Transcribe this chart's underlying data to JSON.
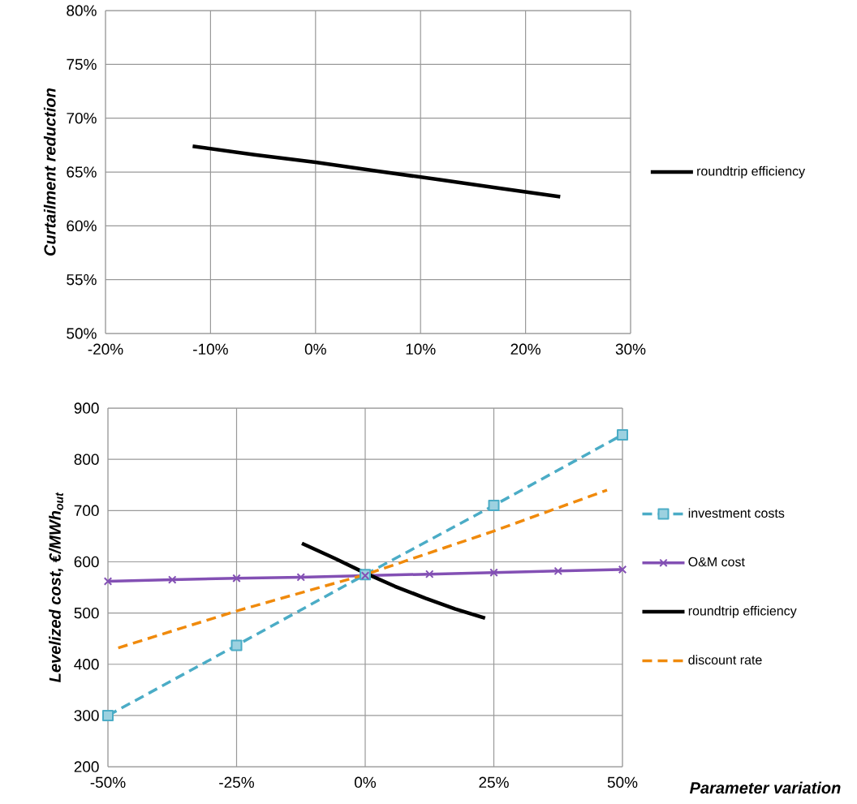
{
  "chart_data": [
    {
      "type": "line",
      "ylabel": "Curtailment reduction",
      "xlim": [
        -20,
        30
      ],
      "xticks": [
        {
          "value": -20,
          "label": "-20%"
        },
        {
          "value": -10,
          "label": "-10%"
        },
        {
          "value": 0,
          "label": "0%"
        },
        {
          "value": 10,
          "label": "10%"
        },
        {
          "value": 20,
          "label": "20%"
        },
        {
          "value": 30,
          "label": "30%"
        }
      ],
      "ylim": [
        50,
        80
      ],
      "yticks": [
        {
          "value": 50,
          "label": "50%"
        },
        {
          "value": 55,
          "label": "55%"
        },
        {
          "value": 60,
          "label": "60%"
        },
        {
          "value": 65,
          "label": "65%"
        },
        {
          "value": 70,
          "label": "70%"
        },
        {
          "value": 75,
          "label": "75%"
        },
        {
          "value": 80,
          "label": "80%"
        }
      ],
      "grid": true,
      "legend": "right",
      "series": [
        {
          "name": "roundtrip efficiency",
          "color": "#000000",
          "marker": "none",
          "line_style": "solid",
          "x": [
            -11.7,
            -5.8,
            0,
            5.8,
            11.7,
            17.5,
            23.3
          ],
          "values": [
            67.4,
            66.6,
            65.9,
            65.1,
            64.3,
            63.5,
            62.7
          ]
        }
      ]
    },
    {
      "type": "line",
      "ylabel": "Levelized cost, €/MWh$_{out}$",
      "xlabel": "Parameter variation",
      "xlim": [
        -50,
        50
      ],
      "xticks": [
        {
          "value": -50,
          "label": "-50%"
        },
        {
          "value": -25,
          "label": "-25%"
        },
        {
          "value": 0,
          "label": "0%"
        },
        {
          "value": 25,
          "label": "25%"
        },
        {
          "value": 50,
          "label": "50%"
        }
      ],
      "ylim": [
        200,
        900
      ],
      "yticks": [
        200,
        300,
        400,
        500,
        600,
        700,
        800,
        900
      ],
      "grid": true,
      "legend": "right",
      "series": [
        {
          "name": "investment costs",
          "color": "#4bacc6",
          "marker": "square",
          "line_style": "dashed",
          "x": [
            -50,
            -25,
            0,
            25,
            50
          ],
          "values": [
            300,
            437,
            575,
            710,
            848
          ]
        },
        {
          "name": "O&M cost",
          "color": "#8350b4",
          "marker": "cross",
          "line_style": "solid",
          "x": [
            -50,
            -37.5,
            -25,
            -12.5,
            0,
            12.5,
            25,
            37.5,
            50
          ],
          "values": [
            562,
            565,
            568,
            570,
            573,
            576,
            579,
            582,
            585
          ]
        },
        {
          "name": "roundtrip efficiency",
          "color": "#000000",
          "marker": "none",
          "line_style": "solid",
          "x": [
            -12.3,
            -6,
            0,
            5.8,
            11.7,
            17.5,
            23.3
          ],
          "values": [
            636,
            607,
            578,
            552,
            529,
            508,
            490
          ]
        },
        {
          "name": "discount rate",
          "color": "#f08a0c",
          "marker": "none",
          "line_style": "dashed",
          "x": [
            -48,
            -25,
            0,
            25,
            47
          ],
          "values": [
            432,
            504,
            575,
            660,
            740
          ]
        }
      ]
    }
  ]
}
